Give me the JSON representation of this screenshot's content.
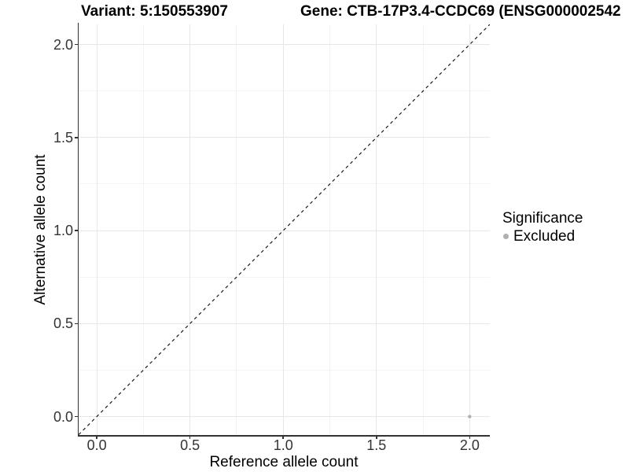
{
  "header": {
    "variant_title": "Variant: 5:150553907",
    "gene_title": "Gene: CTB-17P3.4-CCDC69 (ENSG000002542"
  },
  "chart_data": {
    "type": "scatter",
    "xlabel": "Reference allele count",
    "ylabel": "Alternative allele count",
    "xlim": [
      -0.0975,
      2.1082
    ],
    "ylim": [
      -0.0993,
      2.1082
    ],
    "x_ticks": [
      0.0,
      0.5,
      1.0,
      1.5,
      2.0
    ],
    "y_ticks": [
      0.0,
      0.5,
      1.0,
      1.5,
      2.0
    ],
    "x_tick_labels": [
      "0.0",
      "0.5",
      "1.0",
      "1.5",
      "2.0"
    ],
    "y_tick_labels": [
      "0.0",
      "0.5",
      "1.0",
      "1.5",
      "2.0"
    ],
    "minor_x": [
      0.25,
      0.75,
      1.25,
      1.75
    ],
    "minor_y": [
      0.25,
      0.75,
      1.25,
      1.75
    ],
    "grid": true,
    "identity_line": {
      "style": "dashed",
      "color": "#1a1a1a",
      "x1": -0.0975,
      "y1": -0.0975,
      "x2": 2.1082,
      "y2": 2.1082
    },
    "series": [
      {
        "name": "Excluded",
        "color": "#b0b0b0",
        "points": [
          {
            "x": 2.0,
            "y": 0.0
          }
        ]
      }
    ],
    "legend": {
      "title": "Significance",
      "position": "right",
      "entries": [
        {
          "label": "Excluded",
          "color": "#b0b0b0",
          "marker": "circle"
        }
      ]
    }
  },
  "colors": {
    "background": "#ffffff",
    "grid_major": "#e7e7e7",
    "grid_minor": "#f3f3f3",
    "axis_line": "#333333",
    "tick_label": "#333333",
    "title_text": "#000000",
    "point": "#b0b0b0"
  }
}
